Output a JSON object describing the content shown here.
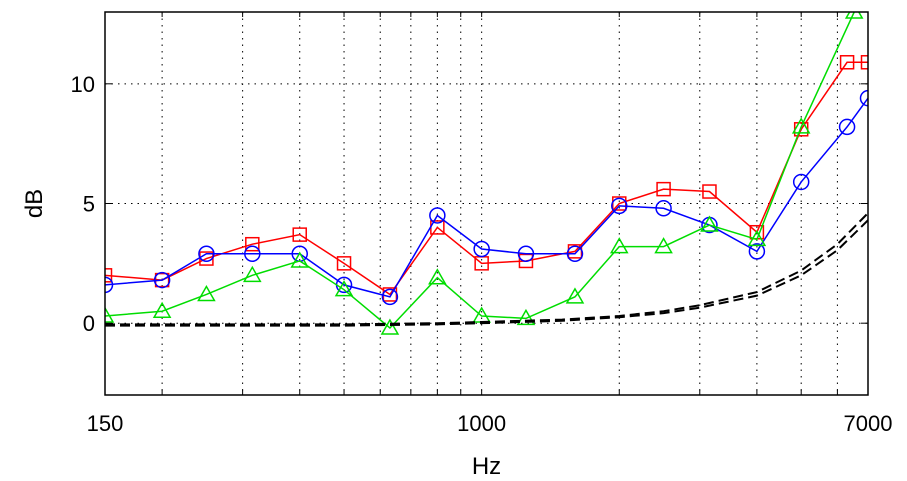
{
  "chart_data": {
    "type": "line",
    "xlabel": "Hz",
    "ylabel": "dB",
    "xscale": "log",
    "xlim": [
      150,
      7000
    ],
    "ylim": [
      -3,
      13
    ],
    "xticks": [
      150,
      1000,
      7000
    ],
    "xtick_labels": [
      "150",
      "1000",
      "7000"
    ],
    "yticks": [
      0,
      5,
      10
    ],
    "ytick_labels": [
      "0",
      "5",
      "10"
    ],
    "grid": true,
    "x": [
      150,
      200,
      250,
      315,
      400,
      500,
      630,
      800,
      1000,
      1250,
      1600,
      2000,
      2500,
      3150,
      4000,
      5000,
      6300
    ],
    "series": [
      {
        "color": "#ff0000",
        "marker": "square",
        "x": [
          150,
          200,
          250,
          315,
          400,
          500,
          630,
          800,
          1000,
          1250,
          1600,
          2000,
          2500,
          3150,
          4000,
          5000,
          6300,
          7000
        ],
        "values": [
          2.0,
          1.8,
          2.7,
          3.3,
          3.7,
          2.5,
          1.2,
          4.0,
          2.5,
          2.6,
          3.0,
          5.0,
          5.6,
          5.5,
          3.8,
          8.1,
          10.9,
          10.9
        ]
      },
      {
        "color": "#0000ff",
        "marker": "circle",
        "x": [
          150,
          200,
          250,
          315,
          400,
          500,
          630,
          800,
          1000,
          1250,
          1600,
          2000,
          2500,
          3150,
          4000,
          5000,
          6300,
          7000
        ],
        "values": [
          1.6,
          1.8,
          2.9,
          2.9,
          2.9,
          1.6,
          1.1,
          4.5,
          3.1,
          2.9,
          2.9,
          4.9,
          4.8,
          4.1,
          3.0,
          5.9,
          8.2,
          9.4
        ]
      },
      {
        "color": "#00dd00",
        "marker": "triangle",
        "x": [
          150,
          200,
          250,
          315,
          400,
          500,
          630,
          800,
          1000,
          1250,
          1600,
          2000,
          2500,
          3150,
          4000,
          5000,
          6530
        ],
        "values": [
          0.3,
          0.5,
          1.2,
          2.0,
          2.6,
          1.4,
          -0.2,
          1.9,
          0.3,
          0.2,
          1.1,
          3.2,
          3.2,
          4.1,
          3.5,
          8.2,
          13.0
        ]
      },
      {
        "color": "#000000",
        "marker": "none",
        "dash": true,
        "x": [
          150,
          300,
          500,
          800,
          1000,
          1500,
          2000,
          2500,
          3000,
          4000,
          5000,
          6000,
          7000
        ],
        "values": [
          -0.05,
          -0.05,
          -0.05,
          0.0,
          0.05,
          0.15,
          0.3,
          0.5,
          0.75,
          1.3,
          2.2,
          3.3,
          4.6
        ]
      },
      {
        "color": "#000000",
        "marker": "none",
        "dash": true,
        "x": [
          150,
          300,
          500,
          800,
          1000,
          1500,
          2000,
          2500,
          3000,
          4000,
          5000,
          6000,
          7000
        ],
        "values": [
          -0.1,
          -0.1,
          -0.1,
          -0.05,
          0.0,
          0.1,
          0.25,
          0.42,
          0.65,
          1.15,
          2.0,
          3.05,
          4.3
        ]
      }
    ]
  }
}
